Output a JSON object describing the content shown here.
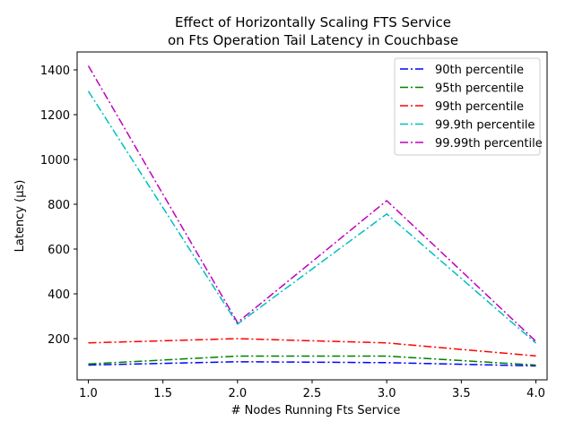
{
  "chart_data": {
    "type": "line",
    "title_line1": "Effect of Horizontally Scaling FTS Service",
    "title_line2": "on Fts Operation Tail Latency in Couchbase",
    "xlabel": "# Nodes Running Fts Service",
    "ylabel": "Latency (µs)",
    "x": [
      1.0,
      2.0,
      3.0,
      4.0
    ],
    "xlim": [
      0.925,
      4.075
    ],
    "ylim": [
      16,
      1480
    ],
    "xticks": [
      "1.0",
      "1.5",
      "2.0",
      "2.5",
      "3.0",
      "3.5",
      "4.0"
    ],
    "yticks": [
      "200",
      "400",
      "600",
      "800",
      "1000",
      "1200",
      "1400"
    ],
    "grid": false,
    "legend_position": "top-right",
    "series": [
      {
        "name": "90th percentile",
        "color": "#0000ff",
        "values": [
          82,
          97,
          93,
          78
        ]
      },
      {
        "name": "95th percentile",
        "color": "#008000",
        "values": [
          87,
          122,
          122,
          82
        ]
      },
      {
        "name": "99th percentile",
        "color": "#ff0000",
        "values": [
          181,
          200,
          181,
          123
        ]
      },
      {
        "name": "99.9th percentile",
        "color": "#00bfbf",
        "values": [
          1305,
          265,
          757,
          180
        ]
      },
      {
        "name": "99.99th percentile",
        "color": "#bf00bf",
        "values": [
          1418,
          272,
          816,
          188
        ]
      }
    ]
  }
}
